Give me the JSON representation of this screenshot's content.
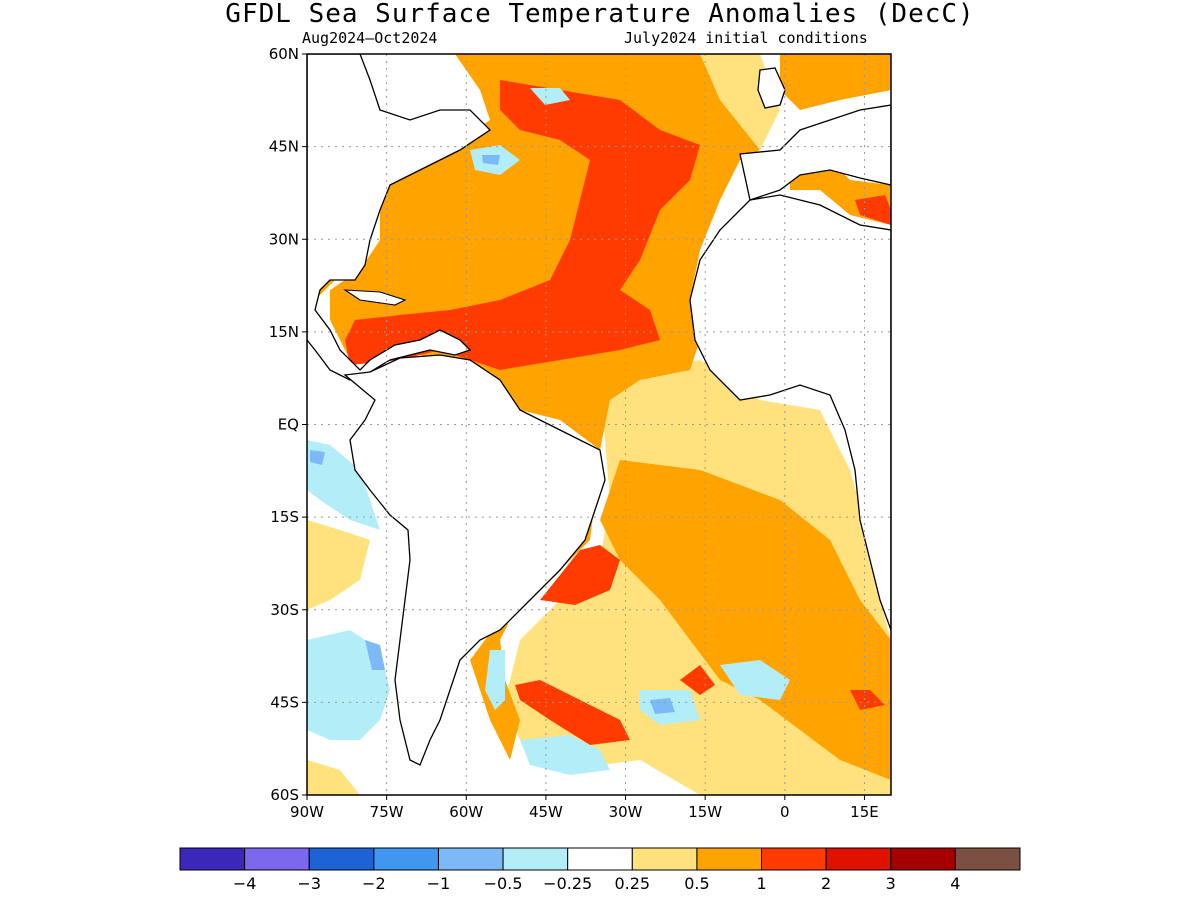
{
  "title": "GFDL Sea Surface Temperature Anomalies (DecC)",
  "subtitle_left": "Aug2024–Oct2024",
  "subtitle_right": "July2024 initial conditions",
  "map": {
    "lon_range": [
      -90,
      20
    ],
    "lat_range": [
      -60,
      60
    ],
    "lat_ticks": [
      {
        "value": 60,
        "label": "60N"
      },
      {
        "value": 45,
        "label": "45N"
      },
      {
        "value": 30,
        "label": "30N"
      },
      {
        "value": 15,
        "label": "15N"
      },
      {
        "value": 0,
        "label": "EQ"
      },
      {
        "value": -15,
        "label": "15S"
      },
      {
        "value": -30,
        "label": "30S"
      },
      {
        "value": -45,
        "label": "45S"
      },
      {
        "value": -60,
        "label": "60S"
      }
    ],
    "lon_ticks": [
      {
        "value": -90,
        "label": "90W"
      },
      {
        "value": -75,
        "label": "75W"
      },
      {
        "value": -60,
        "label": "60W"
      },
      {
        "value": -45,
        "label": "45W"
      },
      {
        "value": -30,
        "label": "30W"
      },
      {
        "value": -15,
        "label": "15W"
      },
      {
        "value": 0,
        "label": "0"
      },
      {
        "value": 15,
        "label": "15E"
      }
    ],
    "gridlines": "dotted"
  },
  "colorbar": {
    "colors": [
      "#3b27ba",
      "#7b68ee",
      "#1e63d6",
      "#4096f0",
      "#7db8f7",
      "#b3eef8",
      "#ffffff",
      "#ffe27e",
      "#ffa300",
      "#ff3b00",
      "#df1200",
      "#a50000",
      "#7a5043"
    ],
    "labels": [
      "−4",
      "−3",
      "−2",
      "−1",
      "−0.5",
      "−0.25",
      "0.25",
      "0.5",
      "1",
      "2",
      "3",
      "4"
    ]
  }
}
